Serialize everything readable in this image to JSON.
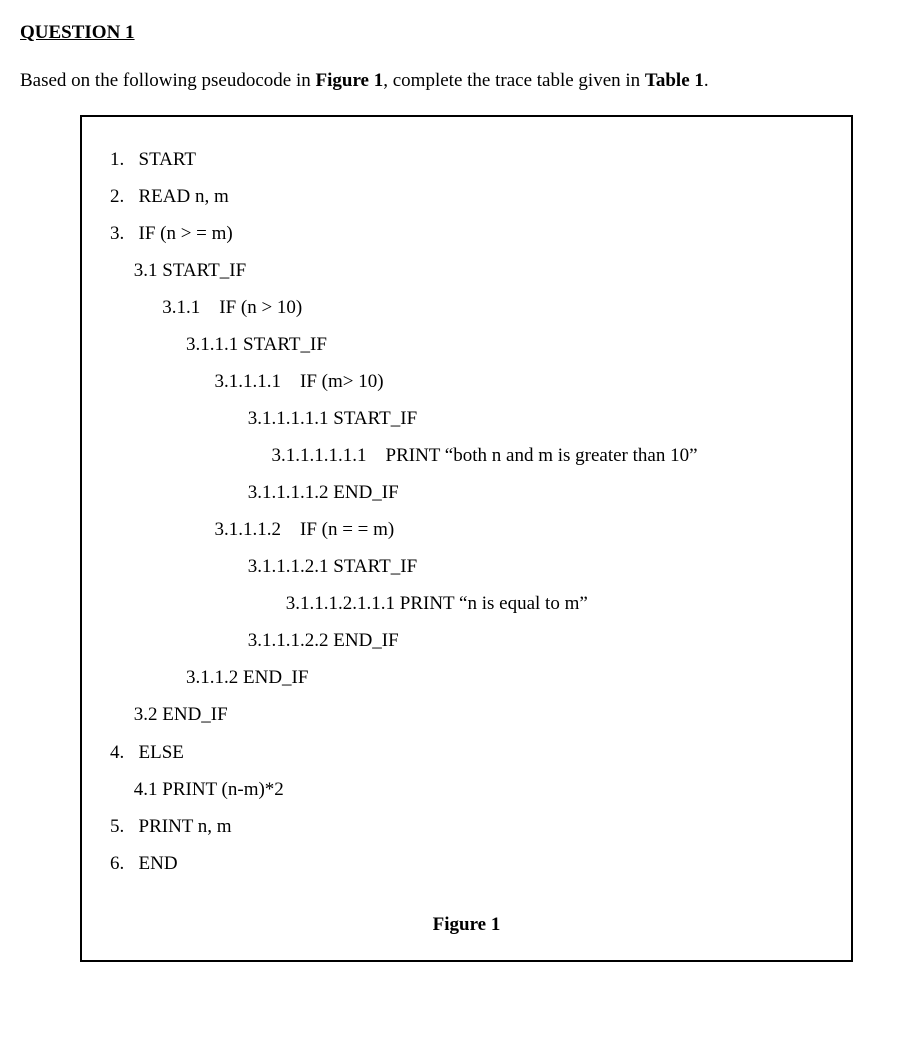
{
  "heading": "QUESTION 1",
  "instruction_prefix": "Based on the following pseudocode in ",
  "instruction_fig": "Figure 1",
  "instruction_mid": ", complete the trace table given in ",
  "instruction_tbl": "Table 1",
  "instruction_suffix": ".",
  "figure_caption": "Figure 1",
  "code": {
    "l01": "1.   START",
    "l02": "2.   READ n, m",
    "l03": "3.   IF (n > = m)",
    "l04": "     3.1 START_IF",
    "l05": "           3.1.1    IF (n > 10)",
    "l06": "                3.1.1.1 START_IF",
    "l07": "                      3.1.1.1.1    IF (m> 10)",
    "l08": "                             3.1.1.1.1.1 START_IF",
    "l09": "                                  3.1.1.1.1.1.1    PRINT “both n and m is greater than 10”",
    "l10": "                             3.1.1.1.1.2 END_IF",
    "l11": "                      3.1.1.1.2    IF (n = = m)",
    "l12": "                             3.1.1.1.2.1 START_IF",
    "l13": "                                     3.1.1.1.2.1.1.1 PRINT “n is equal to m”",
    "l14": "                             3.1.1.1.2.2 END_IF",
    "l15": "                3.1.1.2 END_IF",
    "l16": "     3.2 END_IF",
    "l17": "4.   ELSE",
    "l18": "     4.1 PRINT (n-m)*2",
    "l19": "5.   PRINT n, m",
    "l20": "6.   END"
  }
}
